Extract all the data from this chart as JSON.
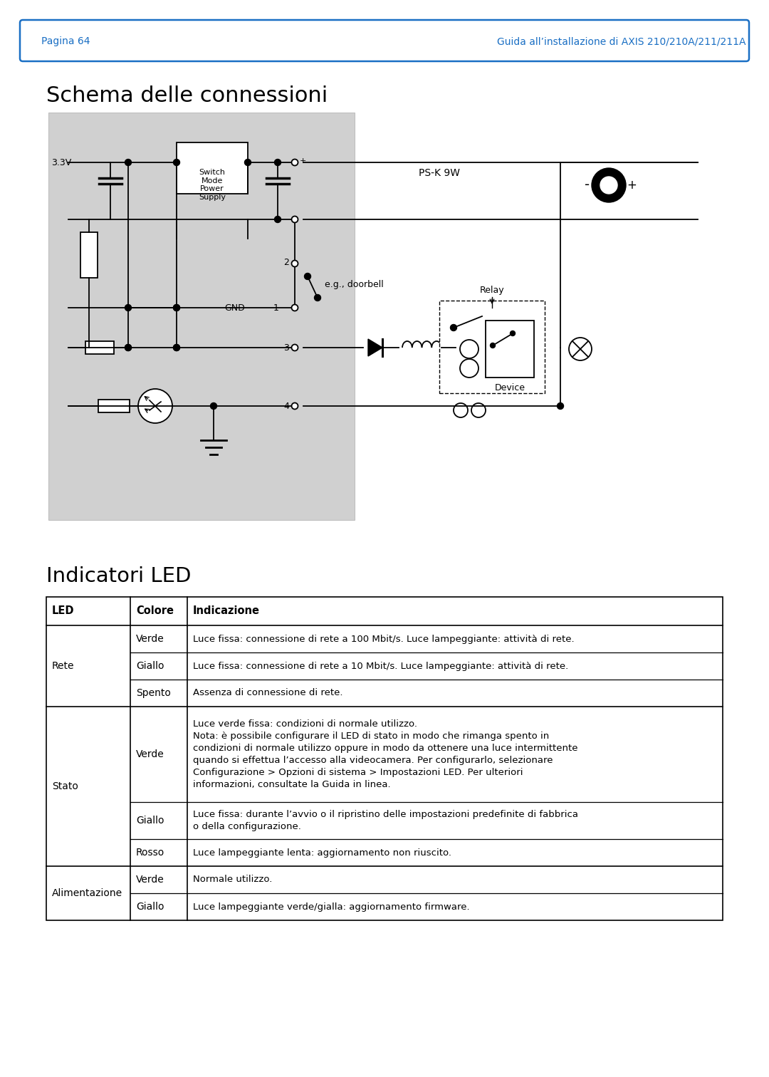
{
  "page_header_left": "Pagina 64",
  "page_header_right": "Guida all’installazione di AXIS 210/210A/211/211A",
  "section1_title": "Schema delle connessioni",
  "section2_title": "Indicatori LED",
  "table_headers": [
    "LED",
    "Colore",
    "Indicazione"
  ],
  "table_rows": [
    [
      "Rete",
      "Verde",
      "Luce fissa: connessione di rete a 100 Mbit/s. Luce lampeggiante: attività di rete."
    ],
    [
      "",
      "Giallo",
      "Luce fissa: connessione di rete a 10 Mbit/s. Luce lampeggiante: attività di rete."
    ],
    [
      "",
      "Spento",
      "Assenza di connessione di rete."
    ],
    [
      "Stato",
      "Verde",
      "Luce verde fissa: condizioni di normale utilizzo.\nNota: è possibile configurare il LED di stato in modo che rimanga spento in\ncondizioni di normale utilizzo oppure in modo da ottenere una luce intermittente\nquando si effettua l’accesso alla videocamera. Per configurarlo, selezionare\nConfigurazione > Opzioni di sistema > Impostazioni LED. Per ulteriori\ninformazioni, consultate la Guida in linea."
    ],
    [
      "",
      "Giallo",
      "Luce fissa: durante l’avvio o il ripristino delle impostazioni predefinite di fabbrica\no della configurazione."
    ],
    [
      "",
      "Rosso",
      "Luce lampeggiante lenta: aggiornamento non riuscito."
    ],
    [
      "Alimentazione",
      "Verde",
      "Normale utilizzo."
    ],
    [
      "",
      "Giallo",
      "Luce lampeggiante verde/gialla: aggiornamento firmware."
    ]
  ],
  "bg_color": "#ffffff",
  "diagram_bg": "#d0d0d0",
  "blue_color": "#1a6fc4",
  "text_color": "#000000",
  "black": "#000000"
}
